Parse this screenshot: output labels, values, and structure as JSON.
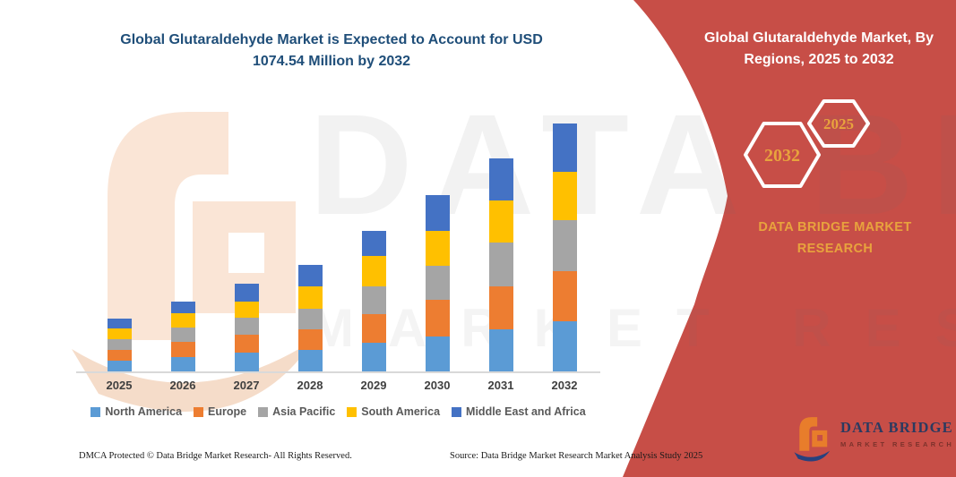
{
  "title": {
    "line1": "Global Glutaraldehyde Market is Expected to Account for USD",
    "line2": "1074.54 Million by 2032"
  },
  "banner": {
    "background_color": "#C74E47",
    "accent_gold": "#E8A33D",
    "heading_line1": "Global Glutaraldehyde Market, By",
    "heading_line2": "Regions, 2025 to 2032",
    "hexagon_back_label": "2032",
    "hexagon_front_label": "2025",
    "brand_line1": "DATA BRIDGE MARKET",
    "brand_line2": "RESEARCH"
  },
  "logo": {
    "title": "DATA BRIDGE",
    "subtitle": "MARKET RESEARCH"
  },
  "watermark": {
    "line1": "DATA BRIDGE",
    "line2": "MARKET RESEARCH"
  },
  "footer": {
    "dmca": "DMCA Protected © Data Bridge Market Research-  All Rights Reserved.",
    "source": "Source: Data Bridge Market Research  Market Analysis Study 2025"
  },
  "chart_data": {
    "type": "bar",
    "stacked": true,
    "title": "Global Glutaraldehyde Market is Expected to Account for USD 1074.54 Million by 2032",
    "unit": "USD Million",
    "categories": [
      "2025",
      "2026",
      "2027",
      "2028",
      "2029",
      "2030",
      "2031",
      "2032"
    ],
    "series": [
      {
        "name": "North America",
        "color": "#5B9BD5",
        "values": [
          46,
          62,
          80,
          93,
          123,
          151,
          184,
          216
        ]
      },
      {
        "name": "Europe",
        "color": "#ED7D31",
        "values": [
          48,
          66,
          78,
          89,
          127,
          159,
          186,
          220
        ]
      },
      {
        "name": "Asia Pacific",
        "color": "#A5A5A5",
        "values": [
          45,
          64,
          74,
          89,
          119,
          147,
          187,
          218
        ]
      },
      {
        "name": "South America",
        "color": "#FFC000",
        "values": [
          46,
          60,
          70,
          97,
          130,
          151,
          183,
          213
        ]
      },
      {
        "name": "Middle East and Africa",
        "color": "#4472C4",
        "values": [
          43,
          50,
          80,
          93,
          112,
          155,
          183,
          207
        ]
      }
    ],
    "category_totals": [
      228,
      302,
      382,
      461,
      611,
      763,
      923,
      1074.54
    ],
    "highlight_total": {
      "year": "2032",
      "value": 1074.54
    },
    "x_axis_visible": true,
    "y_axis_visible": false,
    "gridlines": false,
    "legend_position": "bottom"
  }
}
